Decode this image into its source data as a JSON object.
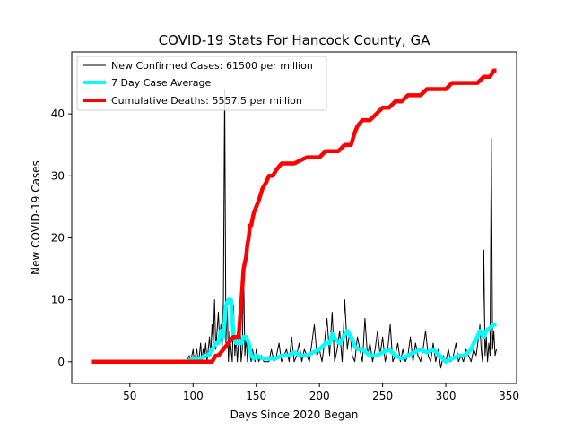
{
  "chart_data": {
    "type": "line",
    "title": "COVID-19 Stats For Hancock County, GA",
    "xlabel": "Days Since 2020 Began",
    "ylabel": "New COVID-19 Cases",
    "xlim": [
      4,
      356
    ],
    "ylim": [
      -3.5,
      50
    ],
    "x_ticks": [
      50,
      100,
      150,
      200,
      250,
      300,
      350
    ],
    "y_ticks": [
      0,
      10,
      20,
      30,
      40
    ],
    "grid": false,
    "legend_position": "top-left",
    "series": [
      {
        "name": "New Confirmed Cases: 61500 per million",
        "color": "#000000",
        "x": [
          20,
          40,
          60,
          80,
          95,
          97,
          98,
          100,
          101,
          102,
          103,
          104,
          105,
          106,
          107,
          108,
          109,
          110,
          111,
          112,
          113,
          114,
          115,
          116,
          117,
          118,
          119,
          120,
          121,
          122,
          123,
          124,
          125,
          126,
          127,
          128,
          129,
          130,
          131,
          132,
          133,
          134,
          135,
          136,
          137,
          138,
          139,
          140,
          141,
          142,
          143,
          144,
          145,
          146,
          147,
          148,
          149,
          150,
          152,
          154,
          156,
          158,
          160,
          162,
          164,
          166,
          168,
          170,
          172,
          174,
          176,
          178,
          180,
          182,
          184,
          186,
          188,
          190,
          192,
          194,
          196,
          198,
          200,
          202,
          204,
          206,
          208,
          210,
          212,
          214,
          216,
          218,
          220,
          222,
          224,
          226,
          228,
          230,
          232,
          234,
          236,
          238,
          240,
          242,
          244,
          246,
          248,
          250,
          252,
          254,
          256,
          258,
          260,
          262,
          264,
          266,
          268,
          270,
          272,
          274,
          276,
          278,
          280,
          282,
          284,
          286,
          288,
          290,
          292,
          294,
          296,
          298,
          300,
          302,
          304,
          306,
          308,
          310,
          312,
          314,
          316,
          318,
          320,
          322,
          324,
          326,
          327,
          328,
          329,
          330,
          331,
          332,
          333,
          334,
          335,
          336,
          337,
          338,
          339,
          340
        ],
        "values": [
          0,
          0,
          0,
          0,
          0,
          1,
          0,
          2,
          0,
          1,
          2,
          0,
          1,
          3,
          0,
          2,
          1,
          3,
          0,
          2,
          4,
          1,
          6,
          3,
          10,
          2,
          5,
          8,
          3,
          6,
          2,
          10,
          44,
          3,
          10,
          0,
          5,
          2,
          0,
          9,
          1,
          4,
          0,
          3,
          9,
          0,
          2,
          15,
          1,
          4,
          0,
          3,
          1,
          0,
          2,
          1,
          0,
          2,
          0,
          1,
          0,
          0,
          0,
          2,
          0,
          1,
          3,
          0,
          1,
          2,
          0,
          4,
          0,
          1,
          3,
          0,
          2,
          1,
          0,
          3,
          6,
          1,
          2,
          0,
          3,
          7,
          1,
          8,
          0,
          2,
          5,
          0,
          10,
          2,
          5,
          1,
          0,
          4,
          2,
          0,
          7,
          1,
          3,
          0,
          2,
          5,
          1,
          4,
          0,
          2,
          6,
          0,
          1,
          3,
          0,
          2,
          0,
          1,
          4,
          0,
          3,
          1,
          0,
          2,
          5,
          1,
          0,
          3,
          0,
          2,
          -1,
          1,
          0,
          2,
          0,
          1,
          3,
          0,
          1,
          0,
          2,
          1,
          0,
          2,
          1,
          4,
          6,
          2,
          0,
          18,
          1,
          4,
          0,
          3,
          1,
          36,
          2,
          5,
          1,
          2
        ]
      },
      {
        "name": "7 Day Case Average",
        "color": "#00ffff",
        "x": [
          95,
          100,
          105,
          110,
          112,
          115,
          118,
          120,
          122,
          124,
          126,
          128,
          130,
          132,
          134,
          136,
          138,
          140,
          142,
          144,
          146,
          148,
          150,
          155,
          160,
          165,
          170,
          175,
          180,
          185,
          190,
          195,
          200,
          205,
          208,
          210,
          213,
          216,
          219,
          222,
          225,
          228,
          231,
          234,
          237,
          240,
          245,
          250,
          255,
          260,
          265,
          270,
          275,
          280,
          285,
          290,
          295,
          300,
          305,
          310,
          315,
          320,
          322,
          325,
          327,
          330,
          332,
          335,
          338,
          340
        ],
        "values": [
          0,
          0.5,
          0.5,
          1,
          1,
          2,
          3,
          3,
          5,
          4,
          9,
          10,
          10,
          4,
          3,
          3,
          3,
          4,
          4,
          3,
          1,
          0.5,
          1,
          0.5,
          0.5,
          0.5,
          1,
          1,
          1.5,
          1,
          1,
          1.5,
          2,
          3,
          3,
          4.5,
          3.5,
          3,
          4,
          5,
          4,
          2.5,
          2,
          2,
          1.5,
          1,
          1,
          1.5,
          2,
          1,
          0.5,
          1,
          1.5,
          2,
          1.5,
          2,
          1,
          0,
          0.5,
          1,
          1,
          2,
          3,
          4,
          5,
          4,
          5,
          5.5,
          6,
          6
        ]
      },
      {
        "name": "Cumulative Deaths: 5557.5 per million",
        "color": "#ff0000",
        "x": [
          20,
          115,
          118,
          120,
          124,
          128,
          132,
          136,
          138,
          140,
          142,
          143,
          144,
          145,
          146,
          147,
          148,
          150,
          152,
          155,
          158,
          160,
          163,
          166,
          170,
          180,
          190,
          195,
          200,
          205,
          210,
          215,
          220,
          225,
          228,
          230,
          234,
          240,
          245,
          250,
          255,
          260,
          265,
          270,
          275,
          280,
          285,
          290,
          295,
          300,
          305,
          310,
          315,
          320,
          325,
          330,
          335,
          338,
          340
        ],
        "values": [
          0,
          0,
          1,
          1,
          2,
          3,
          4,
          4,
          9,
          15,
          17,
          19,
          20,
          22,
          22,
          23,
          24,
          25,
          26,
          28,
          29,
          30,
          30,
          31,
          32,
          32,
          33,
          33,
          33,
          34,
          34,
          34,
          35,
          35,
          37,
          38,
          39,
          39,
          40,
          41,
          41,
          42,
          42,
          43,
          43,
          43,
          44,
          44,
          44,
          44,
          45,
          45,
          45,
          45,
          45,
          46,
          46,
          47,
          47
        ]
      }
    ]
  }
}
